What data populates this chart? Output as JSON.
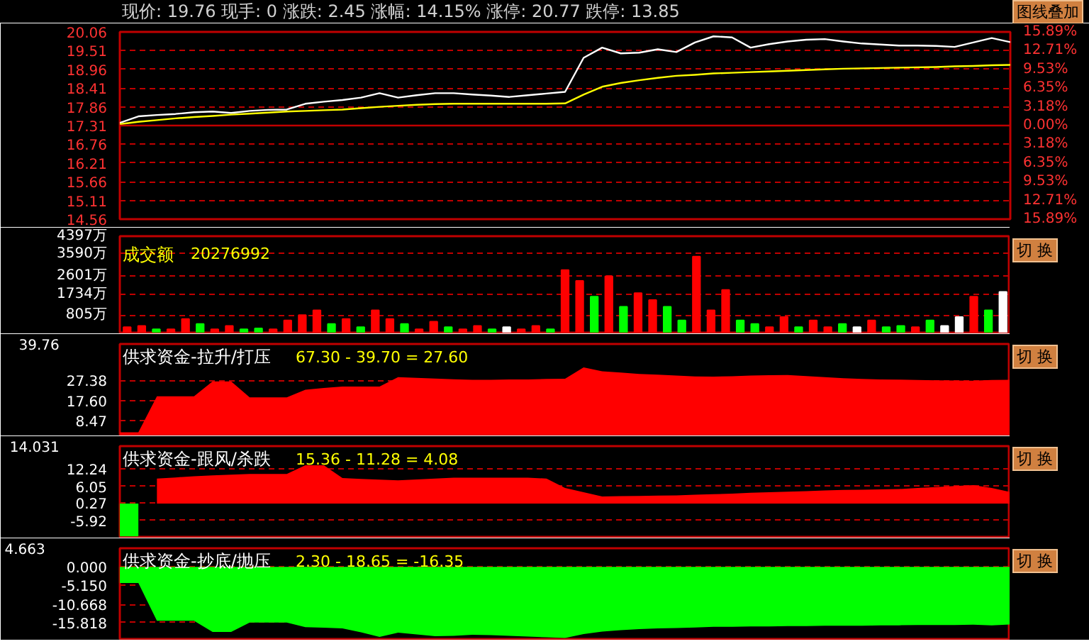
{
  "chart_data": [
    {
      "type": "line",
      "title": "现价: 19.76 现手: 0 涨跌: 2.45 涨幅: 14.15% 涨停: 20.77 跌停: 13.85",
      "annotations": [
        "图线叠加"
      ],
      "categories": [
        null,
        null,
        null,
        null,
        null,
        null,
        null,
        null,
        null,
        null,
        null,
        null,
        null,
        null,
        null,
        null,
        null,
        null,
        null,
        null,
        null,
        null,
        null,
        null,
        null,
        null,
        null,
        null,
        null,
        null,
        null,
        null,
        null,
        null,
        null,
        null,
        null,
        null,
        null,
        null,
        null,
        null,
        null,
        null,
        null,
        null,
        null,
        null,
        null
      ],
      "ylim": [
        14.56,
        20.06
      ],
      "yticks": [
        14.56,
        15.11,
        15.66,
        16.21,
        16.76,
        17.31,
        17.86,
        18.41,
        18.96,
        19.51,
        20.06
      ],
      "y2lim": [
        -15.89,
        15.89
      ],
      "y2ticks": [
        {
          "value": -15.89,
          "label": "15.89%"
        },
        {
          "value": -12.71,
          "label": "12.71%"
        },
        {
          "value": -9.53,
          "label": "9.53%"
        },
        {
          "value": -6.35,
          "label": "6.35%"
        },
        {
          "value": -3.18,
          "label": "3.18%"
        },
        {
          "value": 0,
          "label": "0.00%"
        },
        {
          "value": 3.18,
          "label": "3.18%"
        },
        {
          "value": 6.35,
          "label": "6.35%"
        },
        {
          "value": 9.53,
          "label": "9.53%"
        },
        {
          "value": 12.71,
          "label": "12.71%"
        },
        {
          "value": 15.89,
          "label": "15.89%"
        }
      ],
      "ref_lines": [
        {
          "axis": "y",
          "value": 17.31,
          "color": "#c00000"
        }
      ],
      "grid": "y",
      "series": [
        {
          "color": "#ffffff",
          "values": [
            17.39,
            17.58,
            17.62,
            17.65,
            17.7,
            17.72,
            17.68,
            17.74,
            17.77,
            17.78,
            17.95,
            18.01,
            18.06,
            18.13,
            18.26,
            18.13,
            18.2,
            18.26,
            18.26,
            18.22,
            18.19,
            18.15,
            18.2,
            18.25,
            18.3,
            19.3,
            19.6,
            19.43,
            19.45,
            19.55,
            19.47,
            19.75,
            19.93,
            19.9,
            19.6,
            19.7,
            19.78,
            19.83,
            19.85,
            19.78,
            19.72,
            19.69,
            19.66,
            19.66,
            19.65,
            19.62,
            19.75,
            19.88,
            19.76
          ]
        },
        {
          "color": "#ffff00",
          "values": [
            17.35,
            17.42,
            17.47,
            17.52,
            17.56,
            17.59,
            17.63,
            17.66,
            17.69,
            17.72,
            17.74,
            17.76,
            17.78,
            17.82,
            17.86,
            17.89,
            17.92,
            17.94,
            17.95,
            17.95,
            17.95,
            17.95,
            17.95,
            17.95,
            17.96,
            18.22,
            18.45,
            18.56,
            18.64,
            18.71,
            18.77,
            18.8,
            18.84,
            18.86,
            18.88,
            18.9,
            18.92,
            18.94,
            18.96,
            18.98,
            18.99,
            19,
            19.01,
            19.02,
            19.03,
            19.05,
            19.06,
            19.08,
            19.09
          ]
        }
      ]
    },
    {
      "type": "bar",
      "title": "成交额",
      "subtitle": "20276992",
      "annotations": [
        "切 换"
      ],
      "categories": [
        null,
        null,
        null,
        null,
        null,
        null,
        null,
        null,
        null,
        null,
        null,
        null,
        null,
        null,
        null,
        null,
        null,
        null,
        null,
        null,
        null,
        null,
        null,
        null,
        null,
        null,
        null,
        null,
        null,
        null,
        null,
        null,
        null,
        null,
        null,
        null,
        null,
        null,
        null,
        null,
        null,
        null,
        null,
        null,
        null,
        null,
        null,
        null,
        null,
        null,
        null,
        null,
        null,
        null,
        null,
        null,
        null,
        null,
        null,
        null,
        null
      ],
      "ylim": [
        0,
        4397
      ],
      "yticks": [
        {
          "value": 805,
          "label": "805万"
        },
        {
          "value": 1734,
          "label": "1734万"
        },
        {
          "value": 2601,
          "label": "2601万"
        },
        {
          "value": 3590,
          "label": "3590万"
        },
        {
          "value": 4397,
          "label": "4397万"
        }
      ],
      "grid": "y",
      "values": [
        250,
        310,
        150,
        150,
        620,
        400,
        150,
        310,
        150,
        190,
        150,
        560,
        800,
        1020,
        400,
        620,
        250,
        1020,
        620,
        400,
        150,
        500,
        250,
        150,
        310,
        150,
        250,
        150,
        310,
        150,
        2850,
        2360,
        1640,
        2570,
        1180,
        1800,
        1490,
        1180,
        560,
        3470,
        1020,
        1950,
        560,
        400,
        250,
        710,
        250,
        560,
        250,
        400,
        250,
        560,
        250,
        310,
        250,
        560,
        310,
        710,
        1640,
        1020,
        1860
      ],
      "colors": [
        "#ff0000",
        "#ff0000",
        "#00ff00",
        "#ff0000",
        "#ff0000",
        "#00ff00",
        "#ff0000",
        "#ff0000",
        "#00ff00",
        "#00ff00",
        "#ff0000",
        "#ff0000",
        "#ff0000",
        "#ff0000",
        "#00ff00",
        "#ff0000",
        "#00ff00",
        "#ff0000",
        "#ff0000",
        "#00ff00",
        "#ff0000",
        "#ff0000",
        "#00ff00",
        "#ff0000",
        "#ff0000",
        "#00ff00",
        "#ffffff",
        "#ff0000",
        "#ff0000",
        "#00ff00",
        "#ff0000",
        "#ff0000",
        "#00ff00",
        "#ff0000",
        "#00ff00",
        "#ff0000",
        "#ff0000",
        "#00ff00",
        "#00ff00",
        "#ff0000",
        "#ff0000",
        "#ff0000",
        "#00ff00",
        "#00ff00",
        "#ff0000",
        "#ff0000",
        "#00ff00",
        "#ff0000",
        "#ff0000",
        "#00ff00",
        "#ffffff",
        "#ff0000",
        "#00ff00",
        "#00ff00",
        "#ff0000",
        "#00ff00",
        "#ffffff",
        "#ffffff",
        "#ff0000",
        "#00ff00",
        "#ffffff"
      ]
    },
    {
      "type": "area",
      "title": "供求资金-拉升/打压",
      "subtitle": "67.30 - 39.70 = 27.60",
      "annotations": [
        "39.76",
        "切 换"
      ],
      "categories": [
        null,
        null,
        null,
        null,
        null,
        null,
        null,
        null,
        null,
        null,
        null,
        null,
        null,
        null,
        null,
        null,
        null,
        null,
        null,
        null,
        null,
        null,
        null,
        null,
        null,
        null,
        null,
        null,
        null,
        null,
        null,
        null,
        null,
        null,
        null,
        null,
        null,
        null,
        null,
        null,
        null,
        null,
        null,
        null,
        null,
        null,
        null,
        null,
        null
      ],
      "ylim": [
        1.7,
        44.5
      ],
      "yticks": [
        8.47,
        {
          "value": 17.6,
          "label": "17.60"
        },
        27.38
      ],
      "grid": "y",
      "series": [
        {
          "color": "#ff0000",
          "values": [
            2.9,
            2.9,
            19.8,
            19.8,
            19.8,
            26.9,
            26.9,
            19.3,
            19.3,
            19.3,
            22.9,
            23.8,
            24.4,
            24.4,
            24.4,
            28.9,
            28.5,
            28.2,
            27.9,
            27.6,
            27.6,
            27.8,
            27.8,
            28,
            28.1,
            33.5,
            31.6,
            31,
            30.4,
            30,
            29.6,
            29.2,
            29.1,
            29.3,
            29.6,
            29.8,
            29.9,
            29.4,
            28.9,
            28.4,
            28,
            27.8,
            27.7,
            27.5,
            27.4,
            27.3,
            27.2,
            27.5,
            27.6
          ]
        }
      ]
    },
    {
      "type": "area",
      "title": "供求资金-跟风/杀跌",
      "subtitle": "15.36 - 11.28 = 4.08",
      "annotations": [
        "14.031",
        "切 换"
      ],
      "categories": [
        null,
        null,
        null,
        null,
        null,
        null,
        null,
        null,
        null,
        null,
        null,
        null,
        null,
        null,
        null,
        null,
        null,
        null,
        null,
        null,
        null,
        null,
        null,
        null,
        null,
        null,
        null,
        null,
        null,
        null,
        null,
        null,
        null,
        null,
        null,
        null,
        null,
        null,
        null,
        null,
        null,
        null,
        null,
        null,
        null,
        null,
        null,
        null,
        null
      ],
      "ylim": [
        -11.7,
        20.2
      ],
      "yticks": [
        -5.92,
        0.27,
        6.05,
        12.24
      ],
      "grid": "y",
      "series": [
        {
          "color": "#00ff00",
          "values": [
            -11.5,
            -11.5,
            null,
            null,
            null,
            null,
            null,
            null,
            null,
            null,
            null,
            null,
            null,
            null,
            null,
            null,
            null,
            null,
            null,
            null,
            null,
            null,
            null,
            null,
            null,
            null,
            null,
            null,
            null,
            null,
            null,
            null,
            null,
            null,
            null,
            null,
            null,
            null,
            null,
            null,
            null,
            null,
            null,
            null,
            null,
            null,
            null,
            null,
            null
          ]
        },
        {
          "color": "#ff0000",
          "values": [
            null,
            null,
            8.8,
            9.2,
            9.6,
            9.9,
            10.2,
            10.4,
            10.4,
            10.4,
            13.5,
            13.5,
            9,
            8.7,
            8.4,
            8.2,
            8.5,
            8.8,
            9.1,
            9.1,
            9.1,
            9.1,
            9.1,
            8.8,
            5.5,
            4,
            2.5,
            2.6,
            2.7,
            2.8,
            2.9,
            3.1,
            3.3,
            3.5,
            3.8,
            4,
            4.2,
            4.4,
            4.6,
            4.8,
            4.9,
            5,
            5.1,
            5.5,
            5.8,
            6.2,
            6.5,
            5.5,
            4.08
          ]
        }
      ]
    },
    {
      "type": "area",
      "title": "供求资金-抄底/抛压",
      "subtitle": "2.30 - 18.65 = -16.35",
      "annotations": [
        "4.663",
        "切 换"
      ],
      "categories": [
        null,
        null,
        null,
        null,
        null,
        null,
        null,
        null,
        null,
        null,
        null,
        null,
        null,
        null,
        null,
        null,
        null,
        null,
        null,
        null,
        null,
        null,
        null,
        null,
        null,
        null,
        null,
        null,
        null,
        null,
        null,
        null,
        null,
        null,
        null,
        null,
        null,
        null,
        null,
        null,
        null,
        null,
        null,
        null,
        null,
        null,
        null,
        null,
        null
      ],
      "ylim": [
        -20.5,
        5.3
      ],
      "yticks": [
        {
          "value": -15.818,
          "label": "-15.818"
        },
        {
          "value": -10.668,
          "label": "-10.668"
        },
        {
          "value": -5.15,
          "label": "-5.150"
        },
        {
          "value": 0,
          "label": "0.000"
        }
      ],
      "grid": "y",
      "series": [
        {
          "color": "#00ff00",
          "values": [
            -4.6,
            -4.6,
            -15.3,
            -15.3,
            -15.3,
            -18.5,
            -18.5,
            -15.8,
            -15.8,
            -15.8,
            -17.1,
            -17.3,
            -17.5,
            -18.6,
            -19.9,
            -18.7,
            -19.2,
            -19.7,
            -19.6,
            -19.3,
            -19.4,
            -19.6,
            -19.8,
            -20,
            -20.2,
            -19.1,
            -18.4,
            -18,
            -17.7,
            -17.5,
            -17.4,
            -17.2,
            -17,
            -17,
            -16.9,
            -16.9,
            -16.8,
            -16.8,
            -16.7,
            -16.7,
            -16.7,
            -16.6,
            -16.6,
            -16.5,
            -16.5,
            -16.5,
            -16.4,
            -16.6,
            -16.35
          ]
        }
      ]
    }
  ]
}
